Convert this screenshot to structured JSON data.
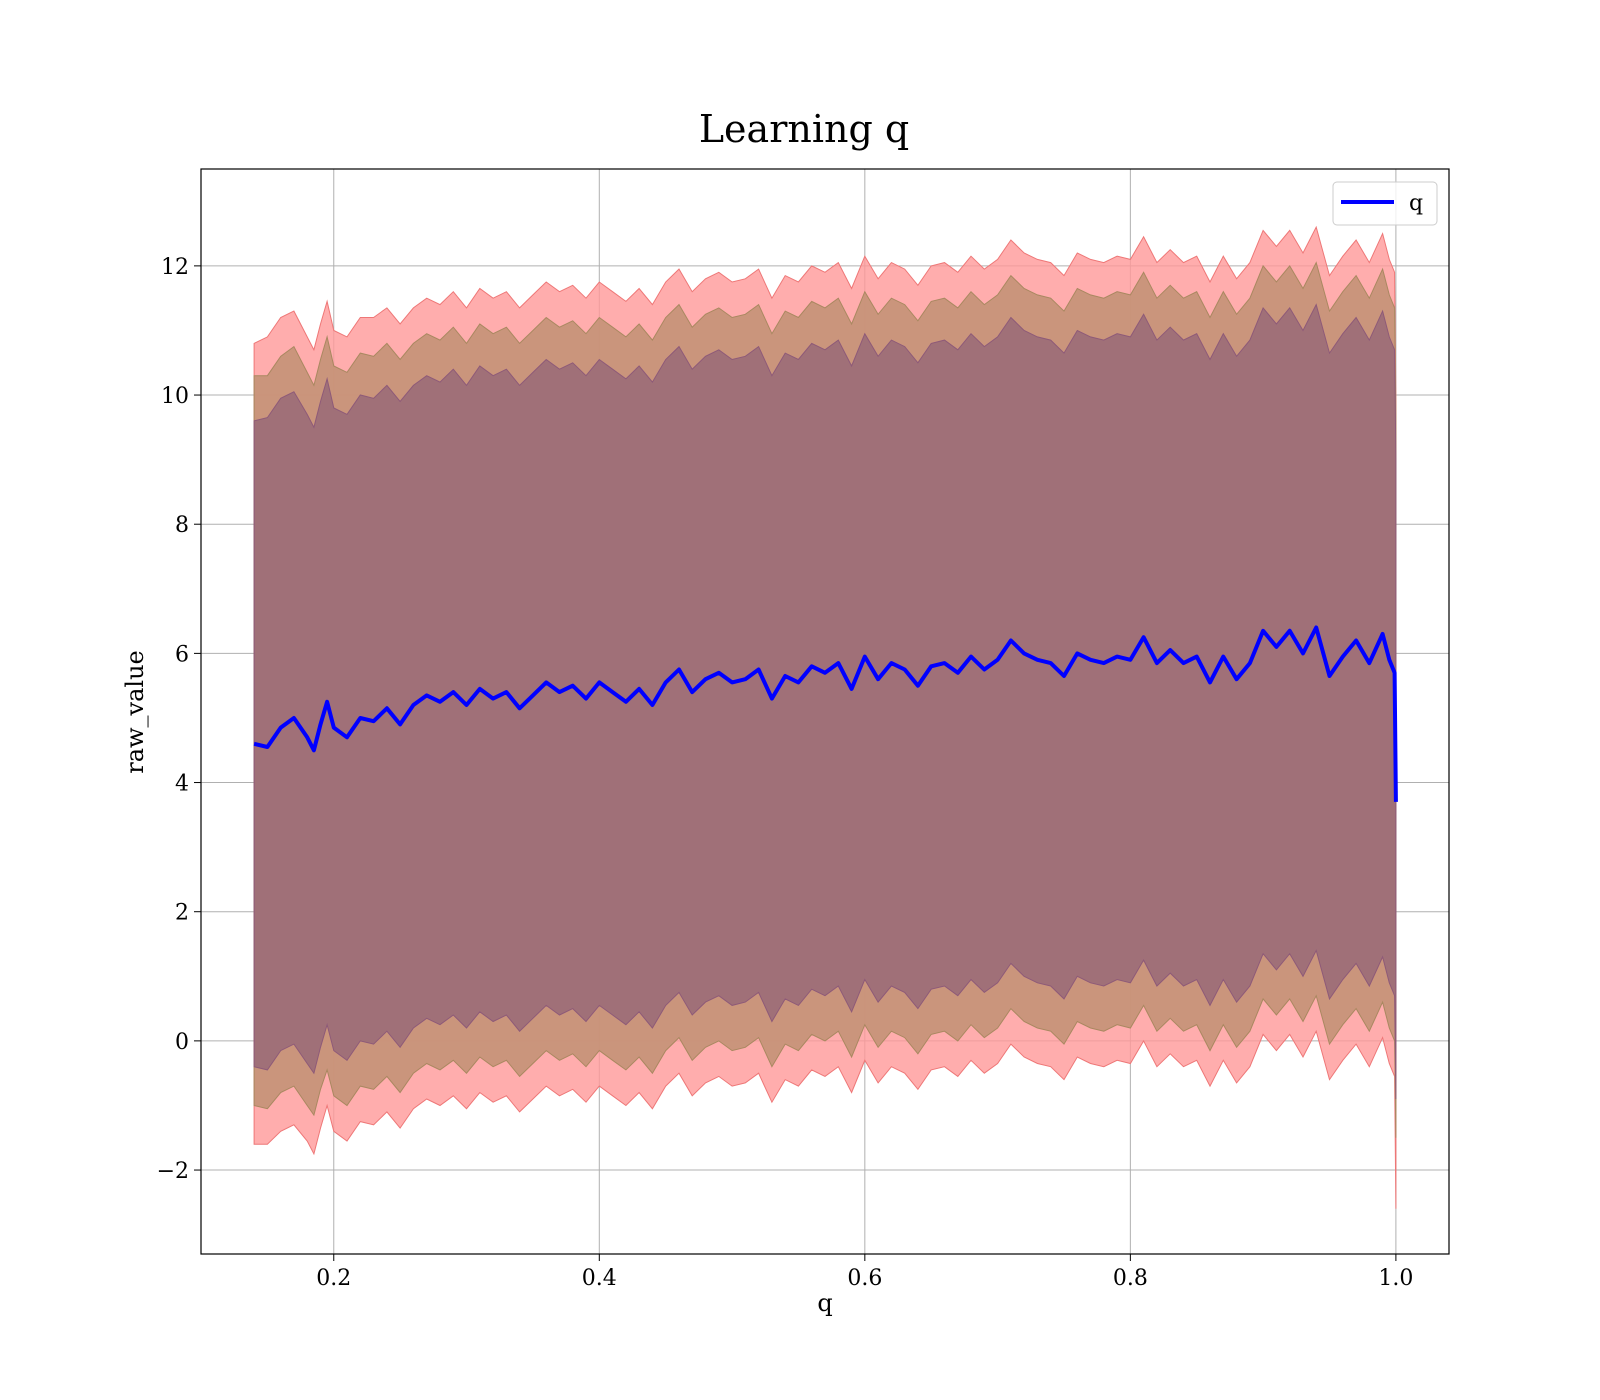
{
  "chart_data": {
    "type": "area",
    "title": "Learning q",
    "xlabel": "q",
    "ylabel": "raw_value",
    "xlim": [
      0.1,
      1.04
    ],
    "ylim": [
      -3.3,
      13.5
    ],
    "xticks": [
      0.2,
      0.4,
      0.6,
      0.8,
      1.0
    ],
    "xtick_labels": [
      "0.2",
      "0.4",
      "0.6",
      "0.8",
      "1.0"
    ],
    "yticks": [
      -2,
      0,
      2,
      4,
      6,
      8,
      10,
      12
    ],
    "ytick_labels": [
      "−2",
      "0",
      "2",
      "4",
      "6",
      "8",
      "10",
      "12"
    ],
    "grid": true,
    "legend": {
      "position": "top-right",
      "entries": [
        "q"
      ]
    },
    "colors": {
      "line": "#0000ff",
      "band_outer": "#ff9999",
      "band_middle": "#c49277",
      "band_inner": "#a07078"
    },
    "series": [
      {
        "name": "q",
        "kind": "line",
        "x": [
          0.14,
          0.15,
          0.16,
          0.17,
          0.18,
          0.185,
          0.19,
          0.195,
          0.2,
          0.21,
          0.22,
          0.23,
          0.24,
          0.25,
          0.26,
          0.27,
          0.28,
          0.29,
          0.3,
          0.31,
          0.32,
          0.33,
          0.34,
          0.35,
          0.36,
          0.37,
          0.38,
          0.39,
          0.4,
          0.41,
          0.42,
          0.43,
          0.44,
          0.45,
          0.46,
          0.47,
          0.48,
          0.49,
          0.5,
          0.51,
          0.52,
          0.53,
          0.54,
          0.55,
          0.56,
          0.57,
          0.58,
          0.59,
          0.6,
          0.61,
          0.62,
          0.63,
          0.64,
          0.65,
          0.66,
          0.67,
          0.68,
          0.69,
          0.7,
          0.71,
          0.72,
          0.73,
          0.74,
          0.75,
          0.76,
          0.77,
          0.78,
          0.79,
          0.8,
          0.81,
          0.82,
          0.83,
          0.84,
          0.85,
          0.86,
          0.87,
          0.88,
          0.89,
          0.9,
          0.91,
          0.92,
          0.93,
          0.94,
          0.95,
          0.96,
          0.97,
          0.98,
          0.99,
          0.995,
          0.999,
          1.0
        ],
        "y": [
          4.6,
          4.55,
          4.85,
          5.0,
          4.7,
          4.5,
          4.9,
          5.25,
          4.85,
          4.7,
          5.0,
          4.95,
          5.15,
          4.9,
          5.2,
          5.35,
          5.25,
          5.4,
          5.2,
          5.45,
          5.3,
          5.4,
          5.15,
          5.35,
          5.55,
          5.4,
          5.5,
          5.3,
          5.55,
          5.4,
          5.25,
          5.45,
          5.2,
          5.55,
          5.75,
          5.4,
          5.6,
          5.7,
          5.55,
          5.6,
          5.75,
          5.3,
          5.65,
          5.55,
          5.8,
          5.7,
          5.85,
          5.45,
          5.95,
          5.6,
          5.85,
          5.75,
          5.5,
          5.8,
          5.85,
          5.7,
          5.95,
          5.75,
          5.9,
          6.2,
          6.0,
          5.9,
          5.85,
          5.65,
          6.0,
          5.9,
          5.85,
          5.95,
          5.9,
          6.25,
          5.85,
          6.05,
          5.85,
          5.95,
          5.55,
          5.95,
          5.6,
          5.85,
          6.35,
          6.1,
          6.35,
          6.0,
          6.4,
          5.65,
          5.95,
          6.2,
          5.85,
          6.3,
          5.9,
          5.7,
          3.7
        ]
      },
      {
        "name": "band_outer",
        "kind": "band",
        "x": [
          0.14,
          0.15,
          0.16,
          0.17,
          0.18,
          0.185,
          0.19,
          0.195,
          0.2,
          0.21,
          0.22,
          0.23,
          0.24,
          0.25,
          0.26,
          0.27,
          0.28,
          0.29,
          0.3,
          0.31,
          0.32,
          0.33,
          0.34,
          0.35,
          0.36,
          0.37,
          0.38,
          0.39,
          0.4,
          0.41,
          0.42,
          0.43,
          0.44,
          0.45,
          0.46,
          0.47,
          0.48,
          0.49,
          0.5,
          0.51,
          0.52,
          0.53,
          0.54,
          0.55,
          0.56,
          0.57,
          0.58,
          0.59,
          0.6,
          0.61,
          0.62,
          0.63,
          0.64,
          0.65,
          0.66,
          0.67,
          0.68,
          0.69,
          0.7,
          0.71,
          0.72,
          0.73,
          0.74,
          0.75,
          0.76,
          0.77,
          0.78,
          0.79,
          0.8,
          0.81,
          0.82,
          0.83,
          0.84,
          0.85,
          0.86,
          0.87,
          0.88,
          0.89,
          0.9,
          0.91,
          0.92,
          0.93,
          0.94,
          0.95,
          0.96,
          0.97,
          0.98,
          0.99,
          0.995,
          0.999,
          1.0
        ],
        "upper": [
          10.8,
          10.9,
          11.2,
          11.3,
          10.9,
          10.7,
          11.1,
          11.45,
          11.0,
          10.9,
          11.2,
          11.2,
          11.35,
          11.1,
          11.35,
          11.5,
          11.4,
          11.6,
          11.35,
          11.65,
          11.5,
          11.6,
          11.35,
          11.55,
          11.75,
          11.6,
          11.7,
          11.5,
          11.75,
          11.6,
          11.45,
          11.65,
          11.4,
          11.75,
          11.95,
          11.6,
          11.8,
          11.9,
          11.75,
          11.8,
          11.95,
          11.5,
          11.85,
          11.75,
          12.0,
          11.9,
          12.05,
          11.65,
          12.15,
          11.8,
          12.05,
          11.95,
          11.7,
          12.0,
          12.05,
          11.9,
          12.15,
          11.95,
          12.1,
          12.4,
          12.2,
          12.1,
          12.05,
          11.85,
          12.2,
          12.1,
          12.05,
          12.15,
          12.1,
          12.45,
          12.05,
          12.25,
          12.05,
          12.15,
          11.75,
          12.15,
          11.8,
          12.05,
          12.55,
          12.3,
          12.55,
          12.2,
          12.6,
          11.85,
          12.15,
          12.4,
          12.05,
          12.5,
          12.1,
          11.9,
          9.9
        ],
        "lower": [
          -1.6,
          -1.6,
          -1.4,
          -1.3,
          -1.55,
          -1.75,
          -1.35,
          -1.0,
          -1.4,
          -1.55,
          -1.25,
          -1.3,
          -1.1,
          -1.35,
          -1.05,
          -0.9,
          -1.0,
          -0.85,
          -1.05,
          -0.8,
          -0.95,
          -0.85,
          -1.1,
          -0.9,
          -0.7,
          -0.85,
          -0.75,
          -0.95,
          -0.7,
          -0.85,
          -1.0,
          -0.8,
          -1.05,
          -0.7,
          -0.5,
          -0.85,
          -0.65,
          -0.55,
          -0.7,
          -0.65,
          -0.5,
          -0.95,
          -0.6,
          -0.7,
          -0.45,
          -0.55,
          -0.4,
          -0.8,
          -0.3,
          -0.65,
          -0.4,
          -0.5,
          -0.75,
          -0.45,
          -0.4,
          -0.55,
          -0.3,
          -0.5,
          -0.35,
          -0.05,
          -0.25,
          -0.35,
          -0.4,
          -0.6,
          -0.25,
          -0.35,
          -0.4,
          -0.3,
          -0.35,
          0.0,
          -0.4,
          -0.2,
          -0.4,
          -0.3,
          -0.7,
          -0.3,
          -0.65,
          -0.4,
          0.1,
          -0.15,
          0.1,
          -0.25,
          0.15,
          -0.6,
          -0.3,
          -0.05,
          -0.4,
          0.05,
          -0.35,
          -0.55,
          -2.6
        ]
      },
      {
        "name": "band_middle",
        "kind": "band",
        "x": [
          0.14,
          0.15,
          0.16,
          0.17,
          0.18,
          0.185,
          0.19,
          0.195,
          0.2,
          0.21,
          0.22,
          0.23,
          0.24,
          0.25,
          0.26,
          0.27,
          0.28,
          0.29,
          0.3,
          0.31,
          0.32,
          0.33,
          0.34,
          0.35,
          0.36,
          0.37,
          0.38,
          0.39,
          0.4,
          0.41,
          0.42,
          0.43,
          0.44,
          0.45,
          0.46,
          0.47,
          0.48,
          0.49,
          0.5,
          0.51,
          0.52,
          0.53,
          0.54,
          0.55,
          0.56,
          0.57,
          0.58,
          0.59,
          0.6,
          0.61,
          0.62,
          0.63,
          0.64,
          0.65,
          0.66,
          0.67,
          0.68,
          0.69,
          0.7,
          0.71,
          0.72,
          0.73,
          0.74,
          0.75,
          0.76,
          0.77,
          0.78,
          0.79,
          0.8,
          0.81,
          0.82,
          0.83,
          0.84,
          0.85,
          0.86,
          0.87,
          0.88,
          0.89,
          0.9,
          0.91,
          0.92,
          0.93,
          0.94,
          0.95,
          0.96,
          0.97,
          0.98,
          0.99,
          0.995,
          0.999,
          1.0
        ],
        "upper": [
          10.3,
          10.3,
          10.6,
          10.75,
          10.35,
          10.15,
          10.55,
          10.9,
          10.45,
          10.35,
          10.65,
          10.6,
          10.8,
          10.55,
          10.8,
          10.95,
          10.85,
          11.05,
          10.8,
          11.1,
          10.95,
          11.05,
          10.8,
          11.0,
          11.2,
          11.05,
          11.15,
          10.95,
          11.2,
          11.05,
          10.9,
          11.1,
          10.85,
          11.2,
          11.4,
          11.05,
          11.25,
          11.35,
          11.2,
          11.25,
          11.4,
          10.95,
          11.3,
          11.2,
          11.45,
          11.35,
          11.5,
          11.1,
          11.6,
          11.25,
          11.5,
          11.4,
          11.15,
          11.45,
          11.5,
          11.35,
          11.6,
          11.4,
          11.55,
          11.85,
          11.65,
          11.55,
          11.5,
          11.3,
          11.65,
          11.55,
          11.5,
          11.6,
          11.55,
          11.9,
          11.5,
          11.7,
          11.5,
          11.6,
          11.2,
          11.6,
          11.25,
          11.5,
          12.0,
          11.75,
          12.0,
          11.65,
          12.05,
          11.3,
          11.6,
          11.85,
          11.5,
          11.95,
          11.55,
          11.35,
          9.6
        ],
        "lower": [
          -1.0,
          -1.05,
          -0.8,
          -0.7,
          -1.0,
          -1.15,
          -0.75,
          -0.45,
          -0.85,
          -1.0,
          -0.7,
          -0.75,
          -0.55,
          -0.8,
          -0.5,
          -0.35,
          -0.45,
          -0.3,
          -0.5,
          -0.25,
          -0.4,
          -0.3,
          -0.55,
          -0.35,
          -0.15,
          -0.3,
          -0.2,
          -0.4,
          -0.15,
          -0.3,
          -0.45,
          -0.25,
          -0.5,
          -0.15,
          0.05,
          -0.3,
          -0.1,
          0.0,
          -0.15,
          -0.1,
          0.05,
          -0.4,
          -0.05,
          -0.15,
          0.1,
          0.0,
          0.15,
          -0.25,
          0.25,
          -0.1,
          0.15,
          0.05,
          -0.2,
          0.1,
          0.15,
          0.0,
          0.25,
          0.05,
          0.2,
          0.5,
          0.3,
          0.2,
          0.15,
          -0.05,
          0.3,
          0.2,
          0.15,
          0.25,
          0.2,
          0.55,
          0.15,
          0.35,
          0.15,
          0.25,
          -0.15,
          0.25,
          -0.1,
          0.15,
          0.65,
          0.4,
          0.65,
          0.3,
          0.7,
          -0.05,
          0.25,
          0.5,
          0.15,
          0.6,
          0.2,
          0.0,
          -1.5
        ]
      },
      {
        "name": "band_inner",
        "kind": "band",
        "x": [
          0.14,
          0.15,
          0.16,
          0.17,
          0.18,
          0.185,
          0.19,
          0.195,
          0.2,
          0.21,
          0.22,
          0.23,
          0.24,
          0.25,
          0.26,
          0.27,
          0.28,
          0.29,
          0.3,
          0.31,
          0.32,
          0.33,
          0.34,
          0.35,
          0.36,
          0.37,
          0.38,
          0.39,
          0.4,
          0.41,
          0.42,
          0.43,
          0.44,
          0.45,
          0.46,
          0.47,
          0.48,
          0.49,
          0.5,
          0.51,
          0.52,
          0.53,
          0.54,
          0.55,
          0.56,
          0.57,
          0.58,
          0.59,
          0.6,
          0.61,
          0.62,
          0.63,
          0.64,
          0.65,
          0.66,
          0.67,
          0.68,
          0.69,
          0.7,
          0.71,
          0.72,
          0.73,
          0.74,
          0.75,
          0.76,
          0.77,
          0.78,
          0.79,
          0.8,
          0.81,
          0.82,
          0.83,
          0.84,
          0.85,
          0.86,
          0.87,
          0.88,
          0.89,
          0.9,
          0.91,
          0.92,
          0.93,
          0.94,
          0.95,
          0.96,
          0.97,
          0.98,
          0.99,
          0.995,
          0.999,
          1.0
        ],
        "upper": [
          9.6,
          9.65,
          9.95,
          10.05,
          9.7,
          9.5,
          9.9,
          10.25,
          9.8,
          9.7,
          10.0,
          9.95,
          10.15,
          9.9,
          10.15,
          10.3,
          10.2,
          10.4,
          10.15,
          10.45,
          10.3,
          10.4,
          10.15,
          10.35,
          10.55,
          10.4,
          10.5,
          10.3,
          10.55,
          10.4,
          10.25,
          10.45,
          10.2,
          10.55,
          10.75,
          10.4,
          10.6,
          10.7,
          10.55,
          10.6,
          10.75,
          10.3,
          10.65,
          10.55,
          10.8,
          10.7,
          10.85,
          10.45,
          10.95,
          10.6,
          10.85,
          10.75,
          10.5,
          10.8,
          10.85,
          10.7,
          10.95,
          10.75,
          10.9,
          11.2,
          11.0,
          10.9,
          10.85,
          10.65,
          11.0,
          10.9,
          10.85,
          10.95,
          10.9,
          11.25,
          10.85,
          11.05,
          10.85,
          10.95,
          10.55,
          10.95,
          10.6,
          10.85,
          11.35,
          11.1,
          11.35,
          11.0,
          11.4,
          10.65,
          10.95,
          11.2,
          10.85,
          11.3,
          10.9,
          10.7,
          9.0
        ],
        "lower": [
          -0.4,
          -0.45,
          -0.15,
          -0.05,
          -0.35,
          -0.5,
          -0.1,
          0.25,
          -0.15,
          -0.3,
          0.0,
          -0.05,
          0.15,
          -0.1,
          0.2,
          0.35,
          0.25,
          0.4,
          0.2,
          0.45,
          0.3,
          0.4,
          0.15,
          0.35,
          0.55,
          0.4,
          0.5,
          0.3,
          0.55,
          0.4,
          0.25,
          0.45,
          0.2,
          0.55,
          0.75,
          0.4,
          0.6,
          0.7,
          0.55,
          0.6,
          0.75,
          0.3,
          0.65,
          0.55,
          0.8,
          0.7,
          0.85,
          0.45,
          0.95,
          0.6,
          0.85,
          0.75,
          0.5,
          0.8,
          0.85,
          0.7,
          0.95,
          0.75,
          0.9,
          1.2,
          1.0,
          0.9,
          0.85,
          0.65,
          1.0,
          0.9,
          0.85,
          0.95,
          0.9,
          1.25,
          0.85,
          1.05,
          0.85,
          0.95,
          0.55,
          0.95,
          0.6,
          0.85,
          1.35,
          1.1,
          1.35,
          1.0,
          1.4,
          0.65,
          0.95,
          1.2,
          0.85,
          1.3,
          0.9,
          0.7,
          -0.9
        ]
      }
    ]
  }
}
